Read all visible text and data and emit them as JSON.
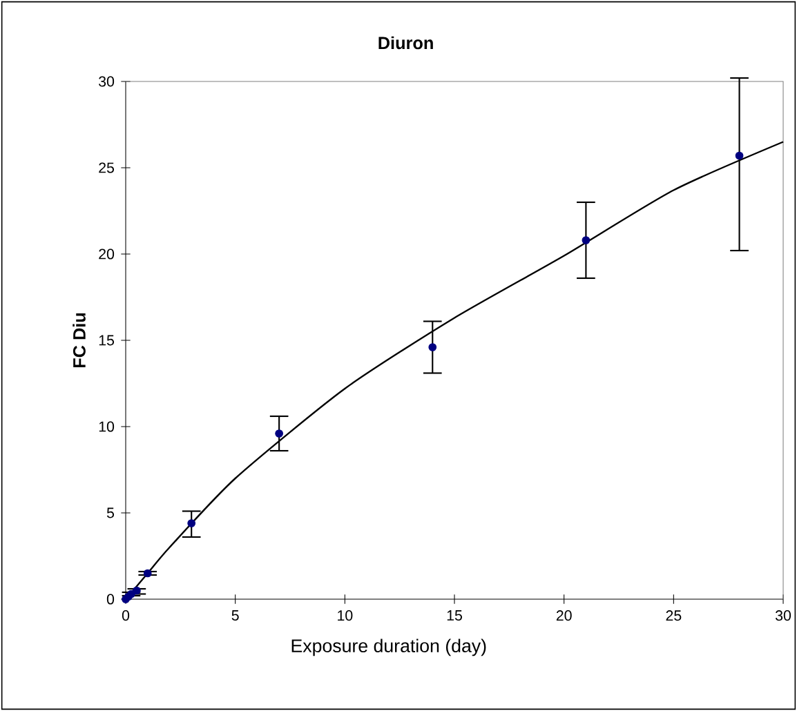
{
  "chart_data": {
    "type": "scatter",
    "title": "Diuron",
    "xlabel": "Exposure duration (day)",
    "ylabel": "FC Diu",
    "xlim": [
      0,
      30
    ],
    "ylim": [
      0,
      30
    ],
    "xticks": [
      0,
      5,
      10,
      15,
      20,
      25,
      30
    ],
    "yticks": [
      0,
      5,
      10,
      15,
      20,
      25,
      30
    ],
    "grid": false,
    "series": [
      {
        "type": "line",
        "color": "#000000",
        "marker": "none",
        "x": [
          0,
          1,
          2,
          5,
          10,
          15,
          20,
          25,
          30
        ],
        "values": [
          0,
          1.5,
          3.0,
          7.0,
          12.2,
          16.3,
          19.9,
          23.7,
          26.5
        ]
      },
      {
        "color": "#000080",
        "marker": "circle",
        "x": [
          0,
          0.125,
          0.25,
          0.5,
          1,
          3,
          7,
          14,
          21,
          28
        ],
        "values": [
          0,
          0.15,
          0.3,
          0.5,
          1.5,
          4.4,
          9.6,
          14.6,
          20.8,
          25.7
        ],
        "errors": [
          null,
          null,
          0.1,
          [
            0.3,
            0.6
          ],
          0.1,
          [
            3.6,
            5.1
          ],
          [
            8.6,
            10.6
          ],
          [
            13.1,
            16.1
          ],
          [
            18.6,
            23.0
          ],
          [
            20.2,
            30.2
          ]
        ]
      }
    ]
  }
}
